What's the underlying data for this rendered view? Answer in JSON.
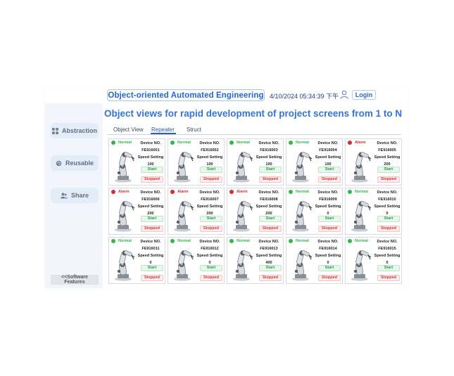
{
  "header": {
    "title": "Object-oriented Automated Engineering",
    "datetime": "4/10/2024 05:34:39 下午",
    "login_label": "Login"
  },
  "sidebar": {
    "items": [
      {
        "label": "Abstraction",
        "icon": "grid-icon"
      },
      {
        "label": "Reusable",
        "icon": "recycle-icon"
      },
      {
        "label": "Share",
        "icon": "users-icon"
      }
    ],
    "features_label": "<<Software Features"
  },
  "main": {
    "title": "Object views for rapid development of project screens from 1 to N",
    "tabs": [
      {
        "label": "Object View",
        "active": false
      },
      {
        "label": "Repeater",
        "active": true
      },
      {
        "label": "Struct",
        "active": false
      }
    ]
  },
  "card_labels": {
    "device_no": "Device NO.",
    "speed_setting": "Speed Setting",
    "start": "Start",
    "stopped": "Stopped"
  },
  "colors": {
    "normal": "#2fb84b",
    "alarm": "#d52b2b",
    "accent": "#2a66c9"
  },
  "devices": [
    {
      "status": "Normal",
      "id": "FE916001",
      "speed": "100"
    },
    {
      "status": "Normal",
      "id": "FE916002",
      "speed": "100"
    },
    {
      "status": "Normal",
      "id": "FE916003",
      "speed": "100"
    },
    {
      "status": "Normal",
      "id": "FE916004",
      "speed": "100"
    },
    {
      "status": "Alarm",
      "id": "FE916005",
      "speed": "200"
    },
    {
      "status": "Alarm",
      "id": "FE916006",
      "speed": "200"
    },
    {
      "status": "Alarm",
      "id": "FE916007",
      "speed": "200"
    },
    {
      "status": "Alarm",
      "id": "FE916008",
      "speed": "200"
    },
    {
      "status": "Normal",
      "id": "FE916009",
      "speed": "0"
    },
    {
      "status": "Normal",
      "id": "FE916010",
      "speed": "0"
    },
    {
      "status": "Normal",
      "id": "FE916011",
      "speed": "0"
    },
    {
      "status": "Normal",
      "id": "FE916012",
      "speed": "0"
    },
    {
      "status": "Normal",
      "id": "FE916013",
      "speed": "400"
    },
    {
      "status": "Normal",
      "id": "FE916014",
      "speed": "0"
    },
    {
      "status": "Normal",
      "id": "FE916015",
      "speed": "0"
    }
  ]
}
